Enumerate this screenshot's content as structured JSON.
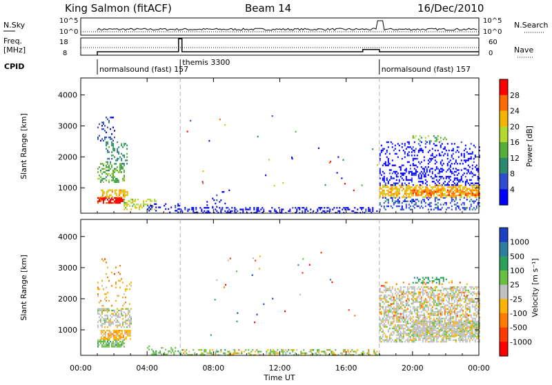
{
  "header": {
    "station": "King Salmon (fitACF)",
    "beam": "Beam 14",
    "date": "16/Dec/2010"
  },
  "chart_data": [
    {
      "type": "line",
      "name": "noise-panel",
      "left_label": "N.Sky",
      "right_label": "N.Search",
      "left_ticks": [
        "10^5",
        "10^0"
      ],
      "right_ticks": [
        "10^5",
        "10^0"
      ]
    },
    {
      "type": "line",
      "name": "freq-panel",
      "left_label_1": "Freq.",
      "left_label_2": "[MHz]",
      "right_label": "Nave",
      "left_ticks": [
        "18",
        "8"
      ],
      "right_ticks": [
        "60",
        "0"
      ],
      "freq_steps": [
        {
          "t": 1.0,
          "f": 10
        },
        {
          "t": 5.9,
          "f": 17.5
        },
        {
          "t": 6.1,
          "f": 10
        },
        {
          "t": 17.0,
          "f": 11.3
        },
        {
          "t": 18.0,
          "f": 10
        },
        {
          "t": 24.0,
          "f": 10
        }
      ]
    },
    {
      "type": "table",
      "name": "cpid-strip",
      "label": "CPID",
      "segments": [
        {
          "start": 1.0,
          "text": "normalsound (fast) 157"
        },
        {
          "start": 6.0,
          "text": "themis 3300"
        },
        {
          "start": 18.0,
          "text": "normalsound (fast) 157"
        }
      ]
    },
    {
      "type": "heatmap",
      "name": "power",
      "ylabel": "Slant Range [km]",
      "ylim": [
        180,
        4550
      ],
      "yticks": [
        1000,
        2000,
        3000,
        4000
      ],
      "colorbar_label": "Power [dB]",
      "colorbar_ticks": [
        "28",
        "24",
        "20",
        "16",
        "12",
        "8",
        "4"
      ],
      "colors": [
        "#0000ff",
        "#2f4bd0",
        "#2a8a70",
        "#55b03a",
        "#b4d82e",
        "#f5b400",
        "#ff6a00",
        "#ff0000"
      ]
    },
    {
      "type": "heatmap",
      "name": "velocity",
      "ylabel": "Slant Range [km]",
      "ylim": [
        180,
        4550
      ],
      "yticks": [
        1000,
        2000,
        3000,
        4000
      ],
      "colorbar_label": "Velocity [m s⁻¹]",
      "colorbar_ticks": [
        "1000",
        "500",
        "100",
        "25",
        "-25",
        "-100",
        "-500",
        "-1000"
      ],
      "colors": [
        "#1c3fc4",
        "#2e7ea2",
        "#2aa05a",
        "#68c043",
        "#c0c0c0",
        "#ffb300",
        "#ff7a00",
        "#ff3a00",
        "#ff0000"
      ]
    }
  ],
  "time_axis": {
    "label": "Time UT",
    "tick_labels": [
      "00:00",
      "04:00",
      "08:00",
      "12:00",
      "16:00",
      "20:00",
      "00:00"
    ],
    "tick_hours": [
      0,
      4,
      8,
      12,
      16,
      20,
      24
    ],
    "mode_change_hours": [
      6.0,
      18.0
    ]
  },
  "scatter_blobs": {
    "power": [
      {
        "t0": 1.0,
        "t1": 2.5,
        "r0": 500,
        "r1": 700,
        "c": 7,
        "d": 0.8
      },
      {
        "t0": 1.2,
        "t1": 2.8,
        "r0": 700,
        "r1": 950,
        "c": 5,
        "d": 0.6
      },
      {
        "t0": 1.0,
        "t1": 2.6,
        "r0": 1200,
        "r1": 1800,
        "c": 3,
        "d": 0.5
      },
      {
        "t0": 1.5,
        "t1": 2.8,
        "r0": 1800,
        "r1": 2500,
        "c": 2,
        "d": 0.3
      },
      {
        "t0": 1.0,
        "t1": 2.0,
        "r0": 2500,
        "r1": 3300,
        "c": 1,
        "d": 0.2
      },
      {
        "t0": 2.5,
        "t1": 4.5,
        "r0": 300,
        "r1": 650,
        "c": 4,
        "d": 0.4
      },
      {
        "t0": 4.0,
        "t1": 6.0,
        "r0": 200,
        "r1": 500,
        "c": 0,
        "d": 0.2
      },
      {
        "t0": 6.0,
        "t1": 18.0,
        "r0": 200,
        "r1": 380,
        "c": 0,
        "d": 0.35
      },
      {
        "t0": 7.5,
        "t1": 9.0,
        "r0": 380,
        "r1": 1000,
        "c": 0,
        "d": 0.05
      },
      {
        "t0": 18.0,
        "t1": 24.0,
        "r0": 700,
        "r1": 1100,
        "c": 5,
        "d": 0.6
      },
      {
        "t0": 20.0,
        "t1": 24.0,
        "r0": 750,
        "r1": 950,
        "c": 6,
        "d": 0.45
      },
      {
        "t0": 18.0,
        "t1": 24.0,
        "r0": 1100,
        "r1": 1600,
        "c": 0,
        "d": 0.35
      },
      {
        "t0": 18.0,
        "t1": 24.0,
        "r0": 300,
        "r1": 700,
        "c": 1,
        "d": 0.3
      },
      {
        "t0": 18.0,
        "t1": 24.0,
        "r0": 1600,
        "r1": 2500,
        "c": 0,
        "d": 0.2
      },
      {
        "t0": 20.0,
        "t1": 22.0,
        "r0": 2500,
        "r1": 2700,
        "c": 3,
        "d": 0.3
      }
    ],
    "velocity": [
      {
        "t0": 1.0,
        "t1": 2.6,
        "r0": 450,
        "r1": 700,
        "c": 3,
        "d": 0.7
      },
      {
        "t0": 1.2,
        "t1": 3.0,
        "r0": 700,
        "r1": 1000,
        "c": 5,
        "d": 0.7
      },
      {
        "t0": 1.0,
        "t1": 3.0,
        "r0": 1100,
        "r1": 1700,
        "c": 4,
        "d": 0.55
      },
      {
        "t0": 1.0,
        "t1": 3.0,
        "r0": 1700,
        "r1": 2600,
        "c": 5,
        "d": 0.12
      },
      {
        "t0": 1.0,
        "t1": 2.5,
        "r0": 2600,
        "r1": 3300,
        "c": 6,
        "d": 0.08
      },
      {
        "t0": 4.0,
        "t1": 6.0,
        "r0": 200,
        "r1": 500,
        "c": 3,
        "d": 0.25
      },
      {
        "t0": 6.0,
        "t1": 18.0,
        "r0": 200,
        "r1": 380,
        "c": 3,
        "d": 0.3
      },
      {
        "t0": 6.0,
        "t1": 18.0,
        "r0": 200,
        "r1": 380,
        "c": 5,
        "d": 0.12
      },
      {
        "t0": 18.0,
        "t1": 24.0,
        "r0": 600,
        "r1": 2400,
        "c": 4,
        "d": 0.55
      },
      {
        "t0": 20.0,
        "t1": 24.0,
        "r0": 800,
        "r1": 1300,
        "c": 4,
        "d": 0.7
      },
      {
        "t0": 18.0,
        "t1": 24.0,
        "r0": 1400,
        "r1": 2600,
        "c": 6,
        "d": 0.06
      },
      {
        "t0": 20.0,
        "t1": 22.0,
        "r0": 2500,
        "r1": 2700,
        "c": 2,
        "d": 0.35
      }
    ]
  }
}
